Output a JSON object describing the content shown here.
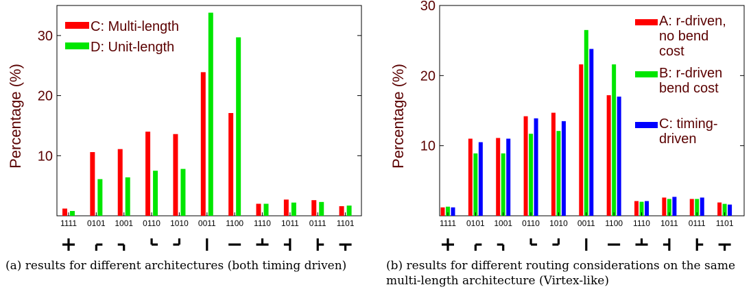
{
  "chart_data": [
    {
      "type": "bar",
      "ylabel": "Percentage (%)",
      "ylim": [
        0,
        35
      ],
      "yticks": [
        10,
        20,
        30
      ],
      "grid": false,
      "legend_position": "top-left",
      "categories": [
        "1111",
        "0101",
        "1001",
        "0110",
        "1010",
        "0011",
        "1100",
        "1110",
        "1011",
        "0111",
        "1101"
      ],
      "symbols": [
        "┼",
        "┌",
        "┐",
        "└",
        "┘",
        "│",
        "─",
        "┴",
        "┤",
        "├",
        "┬"
      ],
      "series": [
        {
          "name": "C: Multi-length",
          "color": "#ff0000",
          "values": [
            1.2,
            10.6,
            11.1,
            14.0,
            13.6,
            23.9,
            17.1,
            2.0,
            2.7,
            2.6,
            1.6
          ]
        },
        {
          "name": "D: Unit-length",
          "color": "#00e600",
          "values": [
            0.8,
            6.1,
            6.4,
            7.5,
            7.8,
            33.8,
            29.7,
            2.0,
            2.2,
            2.3,
            1.7
          ]
        }
      ],
      "caption": "(a) results for different architectures (both timing driven)"
    },
    {
      "type": "bar",
      "ylabel": "Percentage (%)",
      "ylim": [
        0,
        30
      ],
      "yticks": [
        10,
        20,
        30
      ],
      "grid": false,
      "legend_position": "top-right",
      "categories": [
        "1111",
        "0101",
        "1001",
        "0110",
        "1010",
        "0011",
        "1100",
        "1110",
        "1011",
        "0111",
        "1101"
      ],
      "symbols": [
        "┼",
        "┌",
        "┐",
        "└",
        "┘",
        "│",
        "─",
        "┴",
        "┤",
        "├",
        "┬"
      ],
      "series": [
        {
          "name": "A: r-driven, no bend cost",
          "color": "#ff0000",
          "values": [
            1.2,
            11.0,
            11.1,
            14.2,
            14.7,
            21.6,
            17.2,
            2.1,
            2.6,
            2.4,
            1.9
          ]
        },
        {
          "name": "B: r-driven, bend cost",
          "color": "#00e600",
          "values": [
            1.3,
            8.9,
            8.9,
            11.7,
            12.1,
            26.5,
            21.6,
            2.0,
            2.4,
            2.4,
            1.7
          ]
        },
        {
          "name": "C: timing-driven",
          "color": "#0000ff",
          "values": [
            1.2,
            10.5,
            11.0,
            13.9,
            13.5,
            23.8,
            17.0,
            2.1,
            2.7,
            2.6,
            1.6
          ]
        }
      ],
      "legend_display": [
        [
          "A: r-driven,",
          "no bend",
          "cost"
        ],
        [
          "B: r-driven",
          "bend cost"
        ],
        [
          "C: timing-",
          "driven"
        ]
      ],
      "caption": "(b) results for different routing considerations on the same multi-length architecture (Virtex-like)"
    }
  ]
}
